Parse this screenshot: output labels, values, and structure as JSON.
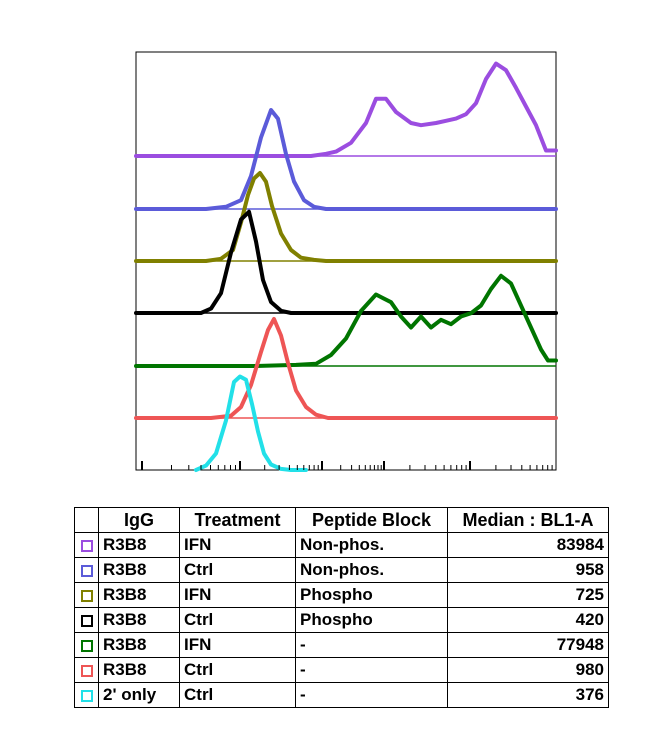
{
  "chart_data": {
    "type": "line",
    "subtype": "offset-histogram-overlay",
    "x_scale": "log",
    "grid": false,
    "series": [
      {
        "id": "s1",
        "color": "#9b4de0",
        "igg": "R3B8",
        "treatment": "IFN",
        "peptide_block": "Non-phos.",
        "median": "83984",
        "x": [
          0,
          40,
          80,
          120,
          160,
          175,
          190,
          200,
          215,
          230,
          240,
          250,
          260,
          275,
          285,
          300,
          310,
          320,
          330,
          340,
          350,
          360,
          370,
          380,
          390,
          400,
          410,
          420
        ],
        "y": [
          0,
          0,
          0,
          0,
          0,
          0,
          0.02,
          0.04,
          0.12,
          0.3,
          0.52,
          0.52,
          0.4,
          0.3,
          0.28,
          0.3,
          0.32,
          0.34,
          0.38,
          0.48,
          0.7,
          0.84,
          0.78,
          0.62,
          0.45,
          0.28,
          0.05,
          0.05
        ]
      },
      {
        "id": "s2",
        "color": "#5b5bd9",
        "igg": "R3B8",
        "treatment": "Ctrl",
        "peptide_block": "Non-phos.",
        "median": "958",
        "x": [
          0,
          70,
          90,
          105,
          115,
          125,
          135,
          142,
          150,
          158,
          168,
          178,
          190,
          420
        ],
        "y": [
          0,
          0,
          0.02,
          0.08,
          0.3,
          0.65,
          0.9,
          0.82,
          0.5,
          0.25,
          0.08,
          0.02,
          0,
          0
        ]
      },
      {
        "id": "s3",
        "color": "#808000",
        "igg": "R3B8",
        "treatment": "IFN",
        "peptide_block": "Phospho",
        "median": "725",
        "x": [
          0,
          70,
          85,
          97,
          105,
          112,
          118,
          124,
          130,
          136,
          145,
          155,
          165,
          178,
          190,
          420
        ],
        "y": [
          0,
          0,
          0.02,
          0.1,
          0.35,
          0.6,
          0.75,
          0.8,
          0.72,
          0.5,
          0.25,
          0.1,
          0.03,
          0.01,
          0,
          0
        ]
      },
      {
        "id": "s4",
        "color": "#000000",
        "igg": "R3B8",
        "treatment": "Ctrl",
        "peptide_block": "Phospho",
        "median": "420",
        "x": [
          0,
          65,
          75,
          85,
          95,
          105,
          113,
          120,
          127,
          135,
          145,
          155,
          420
        ],
        "y": [
          0,
          0,
          0.04,
          0.18,
          0.55,
          0.85,
          0.92,
          0.65,
          0.3,
          0.1,
          0.02,
          0,
          0
        ]
      },
      {
        "id": "s5",
        "color": "#007500",
        "igg": "R3B8",
        "treatment": "IFN",
        "peptide_block": "-",
        "median": "77948",
        "x": [
          0,
          40,
          80,
          120,
          160,
          180,
          195,
          210,
          225,
          240,
          255,
          265,
          275,
          285,
          295,
          305,
          315,
          325,
          335,
          345,
          355,
          365,
          375,
          385,
          395,
          405,
          412,
          420
        ],
        "y": [
          0,
          0,
          0,
          0,
          0.01,
          0.02,
          0.1,
          0.25,
          0.5,
          0.65,
          0.58,
          0.45,
          0.35,
          0.45,
          0.35,
          0.42,
          0.38,
          0.45,
          0.48,
          0.55,
          0.7,
          0.82,
          0.75,
          0.55,
          0.35,
          0.15,
          0.05,
          0.05
        ]
      },
      {
        "id": "s6",
        "color": "#ee5555",
        "igg": "R3B8",
        "treatment": "Ctrl",
        "peptide_block": "-",
        "median": "980",
        "x": [
          0,
          75,
          95,
          105,
          115,
          125,
          132,
          138,
          145,
          152,
          160,
          170,
          180,
          192,
          420
        ],
        "y": [
          0,
          0,
          0.02,
          0.1,
          0.3,
          0.6,
          0.8,
          0.9,
          0.75,
          0.5,
          0.25,
          0.1,
          0.03,
          0,
          0
        ]
      },
      {
        "id": "s7",
        "color": "#22e0e8",
        "igg": "2' only",
        "treatment": "Ctrl",
        "peptide_block": "-",
        "median": "376",
        "x": [
          60,
          70,
          80,
          90,
          98,
          104,
          110,
          116,
          122,
          128,
          135,
          145,
          155,
          170
        ],
        "y": [
          0,
          0.04,
          0.15,
          0.45,
          0.8,
          0.85,
          0.82,
          0.6,
          0.35,
          0.15,
          0.05,
          0.01,
          0,
          0
        ]
      }
    ]
  },
  "table": {
    "headers": [
      "IgG",
      "Treatment",
      "Peptide Block",
      "Median : BL1-A"
    ],
    "rows": [
      {
        "igg": "R3B8",
        "treatment": "IFN",
        "peptide_block": "Non-phos.",
        "median": "83984",
        "color": "#9b4de0"
      },
      {
        "igg": "R3B8",
        "treatment": "Ctrl",
        "peptide_block": "Non-phos.",
        "median": "958",
        "color": "#5b5bd9"
      },
      {
        "igg": "R3B8",
        "treatment": "IFN",
        "peptide_block": "Phospho",
        "median": "725",
        "color": "#808000"
      },
      {
        "igg": "R3B8",
        "treatment": "Ctrl",
        "peptide_block": "Phospho",
        "median": "420",
        "color": "#000000"
      },
      {
        "igg": "R3B8",
        "treatment": "IFN",
        "peptide_block": "-",
        "median": "77948",
        "color": "#007500"
      },
      {
        "igg": "R3B8",
        "treatment": "Ctrl",
        "peptide_block": "-",
        "median": "980",
        "color": "#ee5555"
      },
      {
        "igg": "2' only",
        "treatment": "Ctrl",
        "peptide_block": "-",
        "median": "376",
        "color": "#22e0e8"
      }
    ]
  }
}
